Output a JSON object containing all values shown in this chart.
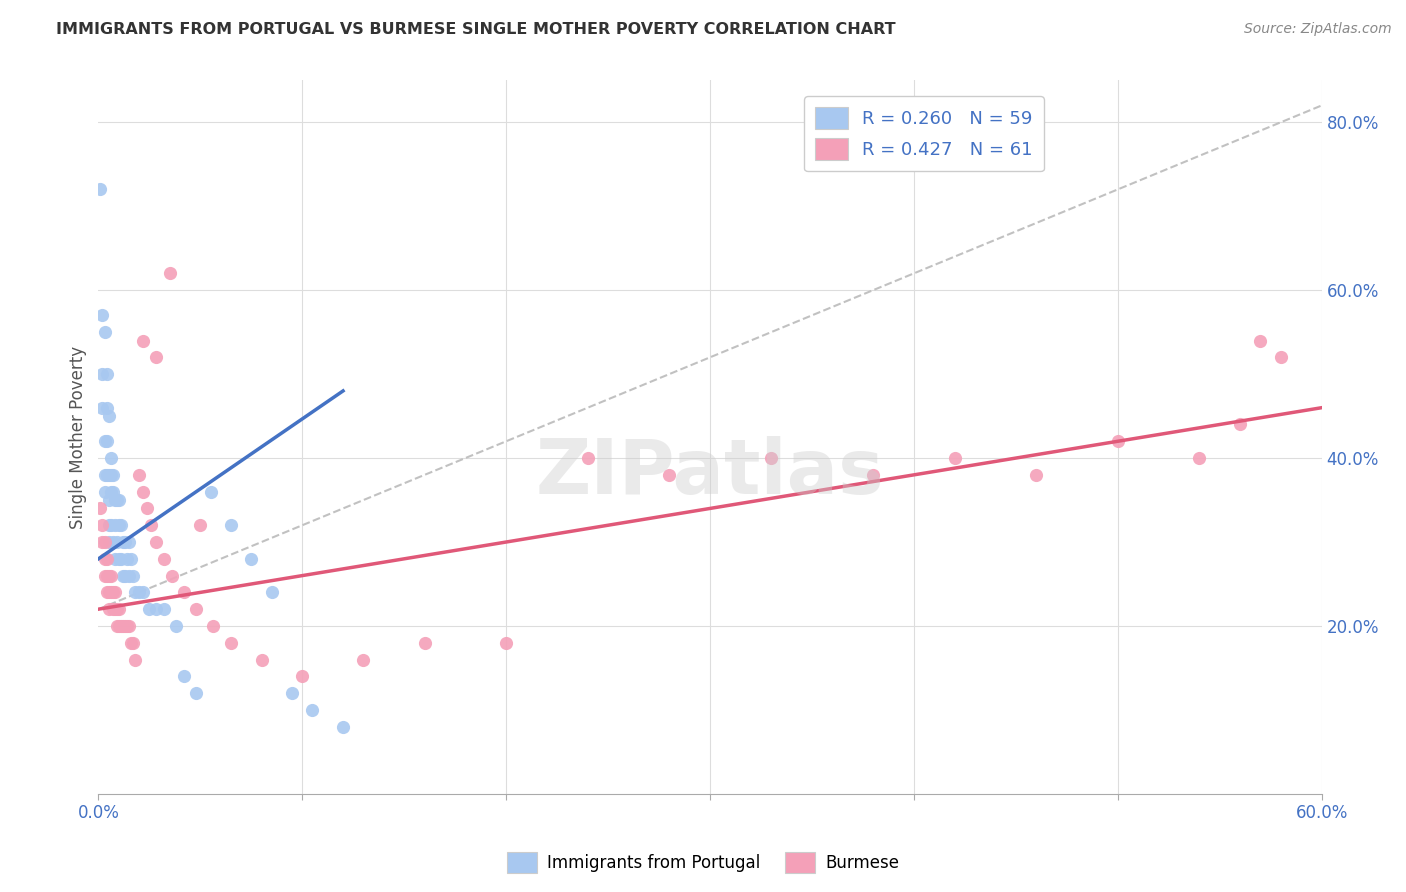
{
  "title": "IMMIGRANTS FROM PORTUGAL VS BURMESE SINGLE MOTHER POVERTY CORRELATION CHART",
  "source": "Source: ZipAtlas.com",
  "ylabel": "Single Mother Poverty",
  "xlim": [
    0.0,
    0.6
  ],
  "ylim": [
    0.0,
    0.85
  ],
  "x_ticks": [
    0.0,
    0.1,
    0.2,
    0.3,
    0.4,
    0.5,
    0.6
  ],
  "x_tick_labels": [
    "0.0%",
    "",
    "",
    "",
    "",
    "",
    "60.0%"
  ],
  "y_ticks_right": [
    0.2,
    0.4,
    0.6,
    0.8
  ],
  "y_tick_labels_right": [
    "20.0%",
    "40.0%",
    "60.0%",
    "80.0%"
  ],
  "legend_label1": "Immigrants from Portugal",
  "legend_label2": "Burmese",
  "color_blue": "#A8C8F0",
  "color_pink": "#F4A0B8",
  "color_blue_line": "#4472C4",
  "color_pink_line": "#E05878",
  "color_gray_dash": "#BBBBBB",
  "portugal_x": [
    0.001,
    0.002,
    0.002,
    0.002,
    0.003,
    0.003,
    0.003,
    0.003,
    0.004,
    0.004,
    0.004,
    0.004,
    0.005,
    0.005,
    0.005,
    0.005,
    0.005,
    0.006,
    0.006,
    0.006,
    0.006,
    0.007,
    0.007,
    0.007,
    0.008,
    0.008,
    0.008,
    0.009,
    0.009,
    0.01,
    0.01,
    0.01,
    0.011,
    0.011,
    0.012,
    0.012,
    0.013,
    0.013,
    0.014,
    0.015,
    0.015,
    0.016,
    0.017,
    0.018,
    0.02,
    0.022,
    0.025,
    0.028,
    0.032,
    0.038,
    0.042,
    0.048,
    0.055,
    0.065,
    0.075,
    0.085,
    0.095,
    0.105,
    0.12
  ],
  "portugal_y": [
    0.72,
    0.57,
    0.5,
    0.46,
    0.55,
    0.42,
    0.38,
    0.36,
    0.5,
    0.46,
    0.42,
    0.38,
    0.45,
    0.38,
    0.35,
    0.32,
    0.3,
    0.4,
    0.38,
    0.36,
    0.32,
    0.38,
    0.36,
    0.3,
    0.35,
    0.32,
    0.28,
    0.35,
    0.3,
    0.35,
    0.32,
    0.28,
    0.32,
    0.28,
    0.3,
    0.26,
    0.3,
    0.26,
    0.28,
    0.3,
    0.26,
    0.28,
    0.26,
    0.24,
    0.24,
    0.24,
    0.22,
    0.22,
    0.22,
    0.2,
    0.14,
    0.12,
    0.36,
    0.32,
    0.28,
    0.24,
    0.12,
    0.1,
    0.08
  ],
  "burmese_x": [
    0.001,
    0.002,
    0.002,
    0.003,
    0.003,
    0.003,
    0.004,
    0.004,
    0.004,
    0.005,
    0.005,
    0.005,
    0.006,
    0.006,
    0.007,
    0.007,
    0.008,
    0.008,
    0.009,
    0.009,
    0.01,
    0.01,
    0.011,
    0.012,
    0.013,
    0.014,
    0.015,
    0.016,
    0.017,
    0.018,
    0.02,
    0.022,
    0.024,
    0.026,
    0.028,
    0.032,
    0.036,
    0.042,
    0.048,
    0.056,
    0.065,
    0.08,
    0.1,
    0.13,
    0.16,
    0.2,
    0.24,
    0.28,
    0.33,
    0.38,
    0.42,
    0.46,
    0.5,
    0.54,
    0.56,
    0.57,
    0.58,
    0.05,
    0.035,
    0.028,
    0.022
  ],
  "burmese_y": [
    0.34,
    0.32,
    0.3,
    0.3,
    0.28,
    0.26,
    0.28,
    0.26,
    0.24,
    0.26,
    0.24,
    0.22,
    0.26,
    0.24,
    0.24,
    0.22,
    0.24,
    0.22,
    0.22,
    0.2,
    0.22,
    0.2,
    0.2,
    0.2,
    0.2,
    0.2,
    0.2,
    0.18,
    0.18,
    0.16,
    0.38,
    0.36,
    0.34,
    0.32,
    0.3,
    0.28,
    0.26,
    0.24,
    0.22,
    0.2,
    0.18,
    0.16,
    0.14,
    0.16,
    0.18,
    0.18,
    0.4,
    0.38,
    0.4,
    0.38,
    0.4,
    0.38,
    0.42,
    0.4,
    0.44,
    0.54,
    0.52,
    0.32,
    0.62,
    0.52,
    0.54
  ],
  "portugal_line_x": [
    0.0,
    0.12
  ],
  "portugal_line_y": [
    0.28,
    0.48
  ],
  "burmese_line_x": [
    0.0,
    0.6
  ],
  "burmese_line_y": [
    0.22,
    0.46
  ],
  "dash_line_x": [
    0.0,
    0.6
  ],
  "dash_line_y": [
    0.22,
    0.82
  ]
}
